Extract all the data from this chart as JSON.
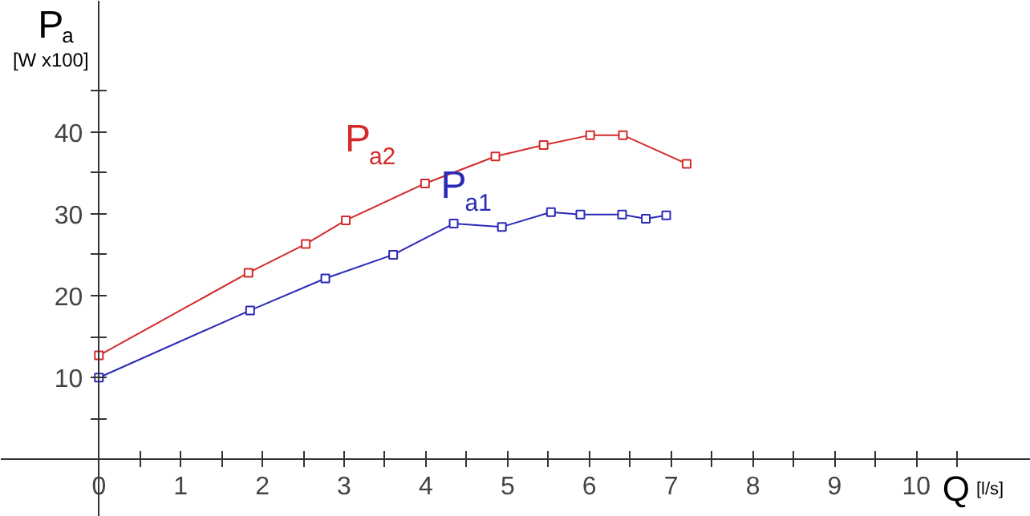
{
  "chart_data": {
    "type": "line",
    "xlabel": "Q [l/s]",
    "ylabel": "P$_{a}$ [W x100]",
    "xlim": [
      -1.2,
      11.4
    ],
    "ylim": [
      -7,
      56
    ],
    "xticks": [
      {
        "value": 0,
        "label": "0"
      },
      {
        "value": 0.5,
        "label": null
      },
      1,
      {
        "value": 1.5,
        "label": null
      },
      2,
      {
        "value": 2.5,
        "label": null
      },
      3,
      {
        "value": 3.5,
        "label": null
      },
      4,
      {
        "value": 4.5,
        "label": null
      },
      5,
      {
        "value": 5.5,
        "label": null
      },
      6,
      {
        "value": 6.5,
        "label": null
      },
      7,
      {
        "value": 7.5,
        "label": null
      },
      8,
      {
        "value": 8.5,
        "label": null
      },
      9,
      {
        "value": 9.5,
        "label": null
      },
      10,
      {
        "value": 10.5,
        "label": null
      }
    ],
    "yticks": [
      {
        "value": 5,
        "label": null
      },
      10,
      {
        "value": 15,
        "label": null
      },
      20,
      {
        "value": 25,
        "label": null
      },
      30,
      {
        "value": 35,
        "label": null
      },
      40,
      {
        "value": 45,
        "label": null
      }
    ],
    "grid": false,
    "marker": "square",
    "line_style": "solid",
    "series": [
      {
        "name": "P$_{a2}$",
        "color": "#d42a2a",
        "x": [
          0,
          1.83,
          2.53,
          3.02,
          3.99,
          4.85,
          5.44,
          6.01,
          6.41,
          7.19
        ],
        "values": [
          12.7,
          22.8,
          26.3,
          29.2,
          33.7,
          37.0,
          38.4,
          39.6,
          39.6,
          36.1
        ]
      },
      {
        "name": "P$_{a1}$",
        "color": "#2a2ab8",
        "x": [
          0,
          1.85,
          2.77,
          3.6,
          4.34,
          4.93,
          5.53,
          5.89,
          6.4,
          6.69,
          6.94
        ],
        "values": [
          10.0,
          18.2,
          22.1,
          25.0,
          28.8,
          28.4,
          30.2,
          29.9,
          29.9,
          29.4,
          29.8
        ]
      }
    ]
  }
}
